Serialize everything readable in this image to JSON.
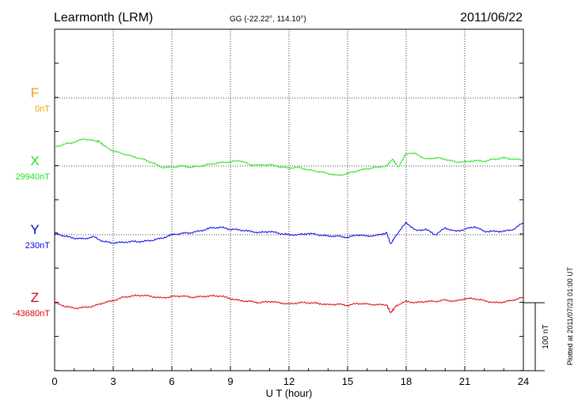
{
  "chart_data": {
    "type": "line",
    "title": "Learmonth (LRM)",
    "subtitle": "GG (-22.22°, 114.10°)",
    "date": "2011/06/22",
    "xlabel": "U T (hour)",
    "xlim": [
      0,
      24
    ],
    "xticks": [
      "0",
      "3",
      "6",
      "9",
      "12",
      "15",
      "18",
      "21",
      "24"
    ],
    "grid": true,
    "scale_label": "100 nT",
    "plotted_note": "Plotted at 2011/07/23 01:00 UT",
    "series": [
      {
        "name": "F",
        "baseline_label": "0nT",
        "color": "#f5a000",
        "x": [],
        "y": []
      },
      {
        "name": "X",
        "baseline_label": "29940nT",
        "color": "#22e022",
        "x": [
          0,
          0.5,
          1.0,
          1.5,
          2.0,
          2.3,
          2.5,
          3.0,
          3.5,
          4.0,
          4.5,
          5.0,
          5.5,
          6.0,
          6.5,
          7.0,
          7.5,
          8.0,
          8.5,
          9.0,
          9.5,
          10.0,
          10.5,
          11.0,
          11.5,
          12.0,
          12.5,
          13.0,
          13.5,
          14.0,
          14.5,
          15.0,
          15.5,
          16.0,
          16.5,
          17.0,
          17.3,
          17.6,
          18.0,
          18.5,
          19.0,
          19.5,
          20.0,
          20.5,
          21.0,
          21.5,
          22.0,
          22.5,
          23.0,
          23.5,
          24.0
        ],
        "y": [
          28,
          32,
          35,
          40,
          37,
          36,
          30,
          22,
          18,
          14,
          10,
          5,
          -2,
          -2,
          0,
          -2,
          0,
          3,
          5,
          6,
          8,
          2,
          1,
          2,
          -1,
          -3,
          -2,
          -6,
          -8,
          -11,
          -14,
          -11,
          -7,
          -4,
          -2,
          0,
          10,
          -2,
          19,
          18,
          10,
          12,
          10,
          6,
          6,
          8,
          7,
          10,
          12,
          10,
          9
        ]
      },
      {
        "name": "Y",
        "baseline_label": "230nT",
        "color": "#0000ee",
        "x": [
          0,
          0.5,
          1.0,
          1.5,
          2.0,
          2.5,
          3.0,
          3.5,
          4.0,
          4.5,
          5.0,
          5.5,
          6.0,
          6.5,
          7.0,
          7.5,
          8.0,
          8.5,
          9.0,
          9.5,
          10.0,
          10.5,
          11.0,
          11.5,
          12.0,
          12.5,
          13.0,
          13.5,
          14.0,
          14.5,
          15.0,
          15.5,
          16.0,
          16.5,
          17.0,
          17.2,
          17.5,
          18.0,
          18.5,
          19.0,
          19.5,
          20.0,
          20.5,
          21.0,
          21.5,
          22.0,
          22.5,
          23.0,
          23.5,
          24.0
        ],
        "y": [
          3,
          -2,
          -5,
          -6,
          -3,
          -10,
          -12,
          -11,
          -10,
          -10,
          -8,
          -5,
          0,
          2,
          3,
          6,
          10,
          11,
          8,
          7,
          5,
          3,
          5,
          2,
          0,
          0,
          2,
          0,
          -2,
          -2,
          -4,
          0,
          -2,
          -1,
          3,
          -14,
          0,
          18,
          6,
          8,
          0,
          10,
          5,
          8,
          12,
          5,
          5,
          5,
          8,
          18
        ]
      },
      {
        "name": "Z",
        "baseline_label": "-43680nT",
        "color": "#e00000",
        "x": [
          0,
          0.5,
          1.0,
          1.5,
          2.0,
          2.5,
          3.0,
          3.5,
          4.0,
          4.5,
          5.0,
          5.5,
          6.0,
          6.5,
          7.0,
          7.5,
          8.0,
          8.5,
          9.0,
          9.5,
          10.0,
          10.5,
          11.0,
          11.5,
          12.0,
          12.5,
          13.0,
          13.5,
          14.0,
          14.5,
          15.0,
          15.5,
          16.0,
          16.5,
          17.0,
          17.2,
          17.5,
          18.0,
          18.5,
          19.0,
          19.5,
          20.0,
          20.5,
          21.0,
          21.5,
          22.0,
          22.5,
          23.0,
          23.5,
          24.0
        ],
        "y": [
          0,
          -5,
          -8,
          -7,
          -5,
          0,
          3,
          8,
          10,
          11,
          9,
          7,
          9,
          10,
          8,
          9,
          10,
          10,
          6,
          3,
          2,
          0,
          2,
          0,
          -2,
          0,
          0,
          -1,
          -3,
          -2,
          -4,
          -1,
          -2,
          -3,
          -3,
          -15,
          -4,
          2,
          0,
          2,
          2,
          4,
          2,
          6,
          6,
          3,
          0,
          1,
          4,
          8
        ]
      }
    ]
  }
}
